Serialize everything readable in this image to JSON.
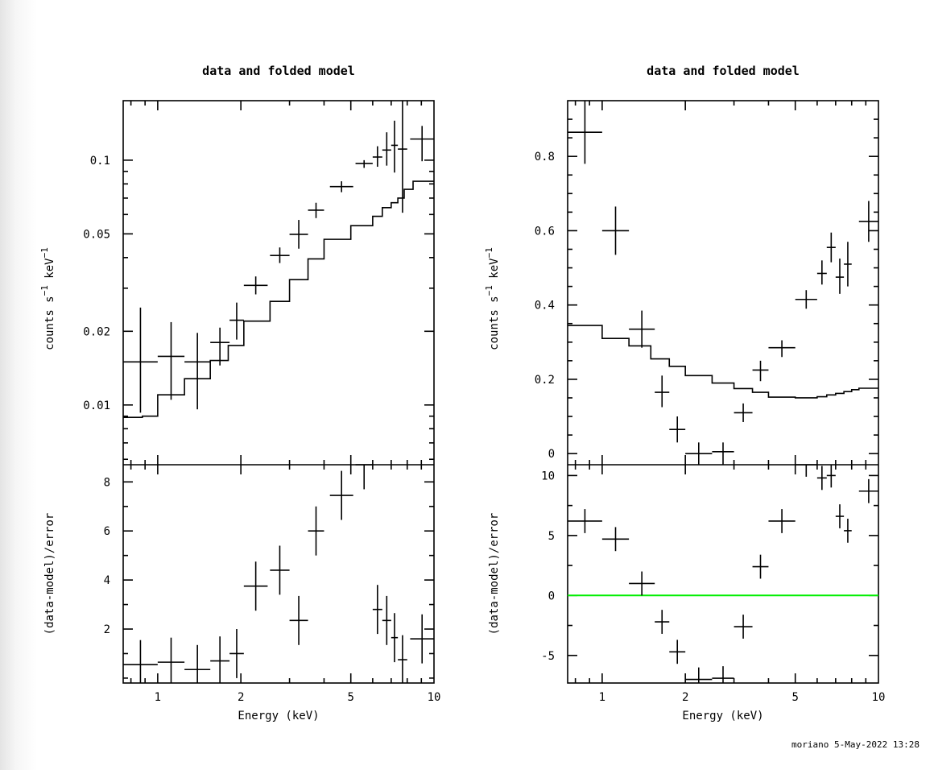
{
  "footer": "moriano  5-May-2022 13:28",
  "chart_data": [
    {
      "type": "scatter",
      "name": "left",
      "title": "data and folded model",
      "xlabel": "Energy (keV)",
      "x_scale": "log",
      "xlim": [
        0.75,
        10
      ],
      "x_tick_labels": [
        "1",
        "2",
        "5",
        "10"
      ],
      "top": {
        "ylabel": "counts s-1 keV-1",
        "y_scale": "log",
        "ylim": [
          0.0057,
          0.175
        ],
        "y_tick_labels": [
          "0.01",
          "0.02",
          "0.05",
          "0.1"
        ],
        "data": [
          {
            "x_lo": 0.75,
            "x_hi": 1.0,
            "y": 0.015,
            "y_err_lo": 0.0093,
            "y_err_hi": 0.025
          },
          {
            "x_lo": 1.0,
            "x_hi": 1.25,
            "y": 0.0158,
            "y_err_lo": 0.0105,
            "y_err_hi": 0.0218
          },
          {
            "x_lo": 1.25,
            "x_hi": 1.55,
            "y": 0.015,
            "y_err_lo": 0.0096,
            "y_err_hi": 0.0197
          },
          {
            "x_lo": 1.55,
            "x_hi": 1.82,
            "y": 0.018,
            "y_err_lo": 0.0145,
            "y_err_hi": 0.0207
          },
          {
            "x_lo": 1.82,
            "x_hi": 2.05,
            "y": 0.0222,
            "y_err_lo": 0.0185,
            "y_err_hi": 0.0262
          },
          {
            "x_lo": 2.05,
            "x_hi": 2.5,
            "y": 0.0308,
            "y_err_lo": 0.0283,
            "y_err_hi": 0.0335
          },
          {
            "x_lo": 2.55,
            "x_hi": 3.0,
            "y": 0.0408,
            "y_err_lo": 0.038,
            "y_err_hi": 0.044
          },
          {
            "x_lo": 3.0,
            "x_hi": 3.5,
            "y": 0.0498,
            "y_err_lo": 0.0435,
            "y_err_hi": 0.057
          },
          {
            "x_lo": 3.5,
            "x_hi": 4.0,
            "y": 0.0625,
            "y_err_lo": 0.058,
            "y_err_hi": 0.067
          },
          {
            "x_lo": 4.2,
            "x_hi": 5.1,
            "y": 0.078,
            "y_err_lo": 0.074,
            "y_err_hi": 0.082
          },
          {
            "x_lo": 5.2,
            "x_hi": 6.0,
            "y": 0.097,
            "y_err_lo": 0.093,
            "y_err_hi": 0.1
          },
          {
            "x_lo": 6.0,
            "x_hi": 6.5,
            "y": 0.103,
            "y_err_lo": 0.094,
            "y_err_hi": 0.114
          },
          {
            "x_lo": 6.5,
            "x_hi": 7.0,
            "y": 0.11,
            "y_err_lo": 0.095,
            "y_err_hi": 0.13
          },
          {
            "x_lo": 7.0,
            "x_hi": 7.4,
            "y": 0.115,
            "y_err_lo": 0.089,
            "y_err_hi": 0.145
          },
          {
            "x_lo": 7.4,
            "x_hi": 8.0,
            "y": 0.111,
            "y_err_lo": 0.061,
            "y_err_hi": 0.175
          },
          {
            "x_lo": 8.2,
            "x_hi": 10.0,
            "y": 0.122,
            "y_err_lo": 0.099,
            "y_err_hi": 0.138
          }
        ],
        "model_step": [
          [
            0.75,
            0.0089
          ],
          [
            0.88,
            0.009
          ],
          [
            1.0,
            0.011
          ],
          [
            1.25,
            0.0128
          ],
          [
            1.55,
            0.0152
          ],
          [
            1.8,
            0.0175
          ],
          [
            2.05,
            0.022
          ],
          [
            2.55,
            0.0265
          ],
          [
            3.0,
            0.0325
          ],
          [
            3.5,
            0.0395
          ],
          [
            4.0,
            0.0475
          ],
          [
            5.0,
            0.054
          ],
          [
            6.0,
            0.059
          ],
          [
            6.5,
            0.064
          ],
          [
            7.0,
            0.067
          ],
          [
            7.4,
            0.07
          ],
          [
            7.8,
            0.076
          ],
          [
            8.4,
            0.082
          ],
          [
            10.0,
            0.082
          ]
        ]
      },
      "bottom": {
        "ylabel": "(data-model)/error",
        "ylim": [
          -0.2,
          8.7
        ],
        "y_tick_labels": [
          "2",
          "4",
          "6",
          "8"
        ],
        "data": [
          {
            "x_lo": 0.75,
            "x_hi": 1.0,
            "y": 0.55,
            "y_err": 1.0
          },
          {
            "x_lo": 1.0,
            "x_hi": 1.25,
            "y": 0.65,
            "y_err": 1.0
          },
          {
            "x_lo": 1.25,
            "x_hi": 1.55,
            "y": 0.35,
            "y_err": 1.0
          },
          {
            "x_lo": 1.55,
            "x_hi": 1.82,
            "y": 0.7,
            "y_err": 1.0
          },
          {
            "x_lo": 1.82,
            "x_hi": 2.05,
            "y": 1.0,
            "y_err": 1.0
          },
          {
            "x_lo": 2.05,
            "x_hi": 2.5,
            "y": 3.75,
            "y_err": 1.0
          },
          {
            "x_lo": 2.55,
            "x_hi": 3.0,
            "y": 4.4,
            "y_err": 1.0
          },
          {
            "x_lo": 3.0,
            "x_hi": 3.5,
            "y": 2.35,
            "y_err": 1.0
          },
          {
            "x_lo": 3.5,
            "x_hi": 4.0,
            "y": 6.0,
            "y_err": 1.0
          },
          {
            "x_lo": 4.2,
            "x_hi": 5.1,
            "y": 7.45,
            "y_err": 1.0
          },
          {
            "x_lo": 5.2,
            "x_hi": 6.0,
            "y": 8.7,
            "y_err": 1.0
          },
          {
            "x_lo": 6.0,
            "x_hi": 6.5,
            "y": 2.8,
            "y_err": 1.0
          },
          {
            "x_lo": 6.5,
            "x_hi": 7.0,
            "y": 2.35,
            "y_err": 1.0
          },
          {
            "x_lo": 7.0,
            "x_hi": 7.4,
            "y": 1.65,
            "y_err": 1.0
          },
          {
            "x_lo": 7.4,
            "x_hi": 8.0,
            "y": 0.75,
            "y_err": 1.0
          },
          {
            "x_lo": 8.2,
            "x_hi": 10.0,
            "y": 1.6,
            "y_err": 1.0
          }
        ],
        "zero_line": false
      }
    },
    {
      "type": "scatter",
      "name": "right",
      "title": "data and folded model",
      "xlabel": "Energy (keV)",
      "x_scale": "log",
      "xlim": [
        0.75,
        10
      ],
      "x_tick_labels": [
        "1",
        "2",
        "5",
        "10"
      ],
      "top": {
        "ylabel": "counts s-1 keV-1",
        "y_scale": "linear",
        "ylim": [
          -0.03,
          0.95
        ],
        "y_ticks": [
          0,
          0.2,
          0.4,
          0.6,
          0.8
        ],
        "y_tick_labels": [
          "0",
          "0.2",
          "0.4",
          "0.6",
          "0.8"
        ],
        "data": [
          {
            "x_lo": 0.75,
            "x_hi": 1.0,
            "y": 0.865,
            "y_err_lo": 0.78,
            "y_err_hi": 0.95
          },
          {
            "x_lo": 1.0,
            "x_hi": 1.25,
            "y": 0.6,
            "y_err_lo": 0.535,
            "y_err_hi": 0.665
          },
          {
            "x_lo": 1.25,
            "x_hi": 1.55,
            "y": 0.335,
            "y_err_lo": 0.285,
            "y_err_hi": 0.385
          },
          {
            "x_lo": 1.55,
            "x_hi": 1.75,
            "y": 0.165,
            "y_err_lo": 0.125,
            "y_err_hi": 0.21
          },
          {
            "x_lo": 1.75,
            "x_hi": 2.0,
            "y": 0.065,
            "y_err_lo": 0.03,
            "y_err_hi": 0.1
          },
          {
            "x_lo": 2.0,
            "x_hi": 2.5,
            "y": 0.0,
            "y_err_lo": -0.03,
            "y_err_hi": 0.03
          },
          {
            "x_lo": 2.5,
            "x_hi": 3.0,
            "y": 0.005,
            "y_err_lo": -0.03,
            "y_err_hi": 0.03
          },
          {
            "x_lo": 3.0,
            "x_hi": 3.5,
            "y": 0.11,
            "y_err_lo": 0.085,
            "y_err_hi": 0.135
          },
          {
            "x_lo": 3.5,
            "x_hi": 4.0,
            "y": 0.225,
            "y_err_lo": 0.195,
            "y_err_hi": 0.25
          },
          {
            "x_lo": 4.0,
            "x_hi": 5.0,
            "y": 0.285,
            "y_err_lo": 0.26,
            "y_err_hi": 0.305
          },
          {
            "x_lo": 5.0,
            "x_hi": 6.0,
            "y": 0.415,
            "y_err_lo": 0.39,
            "y_err_hi": 0.44
          },
          {
            "x_lo": 6.0,
            "x_hi": 6.5,
            "y": 0.485,
            "y_err_lo": 0.455,
            "y_err_hi": 0.52
          },
          {
            "x_lo": 6.5,
            "x_hi": 7.0,
            "y": 0.555,
            "y_err_lo": 0.515,
            "y_err_hi": 0.595
          },
          {
            "x_lo": 7.0,
            "x_hi": 7.5,
            "y": 0.475,
            "y_err_lo": 0.43,
            "y_err_hi": 0.525
          },
          {
            "x_lo": 7.5,
            "x_hi": 8.0,
            "y": 0.51,
            "y_err_lo": 0.45,
            "y_err_hi": 0.57
          },
          {
            "x_lo": 8.5,
            "x_hi": 10.0,
            "y": 0.625,
            "y_err_lo": 0.57,
            "y_err_hi": 0.68
          }
        ],
        "model_step": [
          [
            0.75,
            0.345
          ],
          [
            1.0,
            0.31
          ],
          [
            1.25,
            0.29
          ],
          [
            1.5,
            0.255
          ],
          [
            1.75,
            0.235
          ],
          [
            2.0,
            0.21
          ],
          [
            2.5,
            0.19
          ],
          [
            3.0,
            0.175
          ],
          [
            3.5,
            0.165
          ],
          [
            4.0,
            0.152
          ],
          [
            5.0,
            0.15
          ],
          [
            6.0,
            0.153
          ],
          [
            6.5,
            0.158
          ],
          [
            7.0,
            0.162
          ],
          [
            7.5,
            0.167
          ],
          [
            8.0,
            0.172
          ],
          [
            8.5,
            0.176
          ],
          [
            10.0,
            0.176
          ]
        ]
      },
      "bottom": {
        "ylabel": "(data-model)/error",
        "ylim": [
          -7.3,
          10.9
        ],
        "y_ticks": [
          -5,
          0,
          5,
          10
        ],
        "y_tick_labels": [
          "-5",
          "0",
          "5",
          "10"
        ],
        "data": [
          {
            "x_lo": 0.75,
            "x_hi": 1.0,
            "y": 6.2,
            "y_err": 1.0
          },
          {
            "x_lo": 1.0,
            "x_hi": 1.25,
            "y": 4.7,
            "y_err": 1.0
          },
          {
            "x_lo": 1.25,
            "x_hi": 1.55,
            "y": 1.0,
            "y_err": 1.0
          },
          {
            "x_lo": 1.55,
            "x_hi": 1.75,
            "y": -2.2,
            "y_err": 1.0
          },
          {
            "x_lo": 1.75,
            "x_hi": 2.0,
            "y": -4.7,
            "y_err": 1.0
          },
          {
            "x_lo": 2.0,
            "x_hi": 2.5,
            "y": -7.0,
            "y_err": 1.0
          },
          {
            "x_lo": 2.5,
            "x_hi": 3.0,
            "y": -6.9,
            "y_err": 1.0
          },
          {
            "x_lo": 3.0,
            "x_hi": 3.5,
            "y": -2.6,
            "y_err": 1.0
          },
          {
            "x_lo": 3.5,
            "x_hi": 4.0,
            "y": 2.4,
            "y_err": 1.0
          },
          {
            "x_lo": 4.0,
            "x_hi": 5.0,
            "y": 6.2,
            "y_err": 1.0
          },
          {
            "x_lo": 5.0,
            "x_hi": 6.0,
            "y": 10.9,
            "y_err": 1.0
          },
          {
            "x_lo": 6.0,
            "x_hi": 6.5,
            "y": 9.8,
            "y_err": 1.0
          },
          {
            "x_lo": 6.5,
            "x_hi": 7.0,
            "y": 10.0,
            "y_err": 1.0
          },
          {
            "x_lo": 7.0,
            "x_hi": 7.5,
            "y": 6.6,
            "y_err": 1.0
          },
          {
            "x_lo": 7.5,
            "x_hi": 8.0,
            "y": 5.4,
            "y_err": 1.0
          },
          {
            "x_lo": 8.5,
            "x_hi": 10.0,
            "y": 8.7,
            "y_err": 1.0
          }
        ],
        "zero_line": true,
        "zero_line_color": "#00ee00"
      }
    }
  ]
}
